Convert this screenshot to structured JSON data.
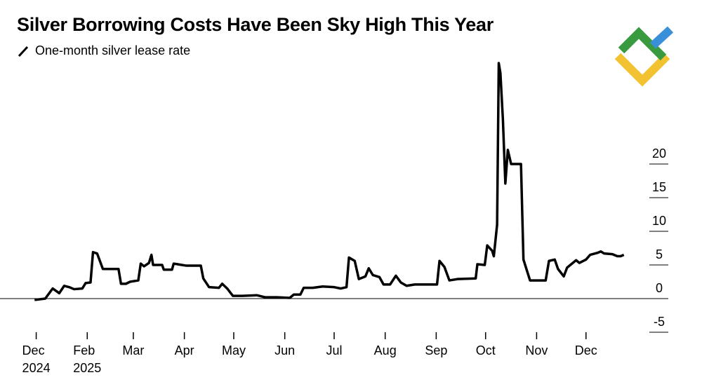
{
  "chart_data": {
    "type": "line",
    "title": "Silver Borrowing Costs Have Been Sky High This Year",
    "series": [
      {
        "name": "One-month silver lease rate",
        "color": "#000000",
        "x": [
          -1,
          5.5,
          10,
          14,
          17,
          20,
          23,
          28,
          30,
          33,
          34.5,
          37,
          40.5,
          50,
          51.5,
          54.5,
          57,
          62,
          63.5,
          65.5,
          68.5,
          70,
          71,
          76.5,
          77.5,
          82.5,
          83.5,
          91,
          100,
          101.5,
          105,
          111,
          113,
          116,
          119.5,
          125,
          134,
          139,
          146.5,
          154,
          156.5,
          160.5,
          162.5,
          168,
          174,
          181,
          185,
          188.5,
          190,
          193.5,
          196,
          200,
          202,
          204.5,
          208.5,
          211,
          215,
          218.5,
          221.5,
          225,
          230,
          243.5,
          245,
          248,
          251,
          256,
          267,
          268,
          272.5,
          274,
          277,
          278,
          280,
          281,
          282,
          283.5,
          285,
          286.5,
          288.5,
          294.5,
          296,
          300,
          309.5,
          311.5,
          315,
          317,
          320.5,
          322.5,
          328,
          330,
          334,
          336.5,
          341,
          343,
          345,
          350,
          353,
          355,
          357
        ],
        "values": [
          -0.2,
          0,
          1.5,
          0.8,
          1.9,
          1.7,
          1.4,
          1.5,
          2.3,
          2.4,
          6.9,
          6.7,
          4.4,
          4.4,
          2.2,
          2.2,
          2.5,
          2.7,
          5.2,
          4.8,
          5.3,
          6.5,
          5.0,
          5.0,
          4.3,
          4.3,
          5.2,
          4.9,
          4.9,
          3.0,
          1.7,
          1.6,
          2.2,
          1.5,
          0.4,
          0.4,
          0.5,
          0.2,
          0.2,
          0.1,
          0.6,
          0.6,
          1.6,
          1.6,
          1.8,
          1.7,
          1.5,
          1.7,
          6.1,
          5.6,
          2.9,
          3.3,
          4.5,
          3.5,
          3.2,
          2.1,
          2.1,
          3.4,
          2.4,
          1.9,
          2.1,
          2.1,
          5.6,
          4.7,
          2.7,
          2.9,
          3.0,
          5.1,
          5.0,
          7.9,
          7.1,
          6.3,
          11,
          35,
          33.5,
          26.7,
          17.1,
          22.1,
          20,
          20,
          5.8,
          2.7,
          2.7,
          5.6,
          5.8,
          4.4,
          3.3,
          4.6,
          5.7,
          5.3,
          5.8,
          6.5,
          6.8,
          7.0,
          6.7,
          6.6,
          6.3,
          6.3,
          6.5
        ]
      }
    ],
    "xlim": [
      -22,
      384
    ],
    "xticks": [
      {
        "value": 0,
        "label": "Dec\n2024"
      },
      {
        "value": 31,
        "label": "Feb\n2025"
      },
      {
        "value": 59,
        "label": "Mar"
      },
      {
        "value": 90,
        "label": "Apr"
      },
      {
        "value": 120,
        "label": "May"
      },
      {
        "value": 151,
        "label": "Jun"
      },
      {
        "value": 181,
        "label": "Jul"
      },
      {
        "value": 212,
        "label": "Aug"
      },
      {
        "value": 243,
        "label": "Sep"
      },
      {
        "value": 273,
        "label": "Oct"
      },
      {
        "value": 304,
        "label": "Nov"
      },
      {
        "value": 334,
        "label": "Dec"
      }
    ],
    "ylim": [
      -5,
      36
    ],
    "yticks": [
      -5,
      0,
      5,
      10,
      15,
      20
    ]
  }
}
